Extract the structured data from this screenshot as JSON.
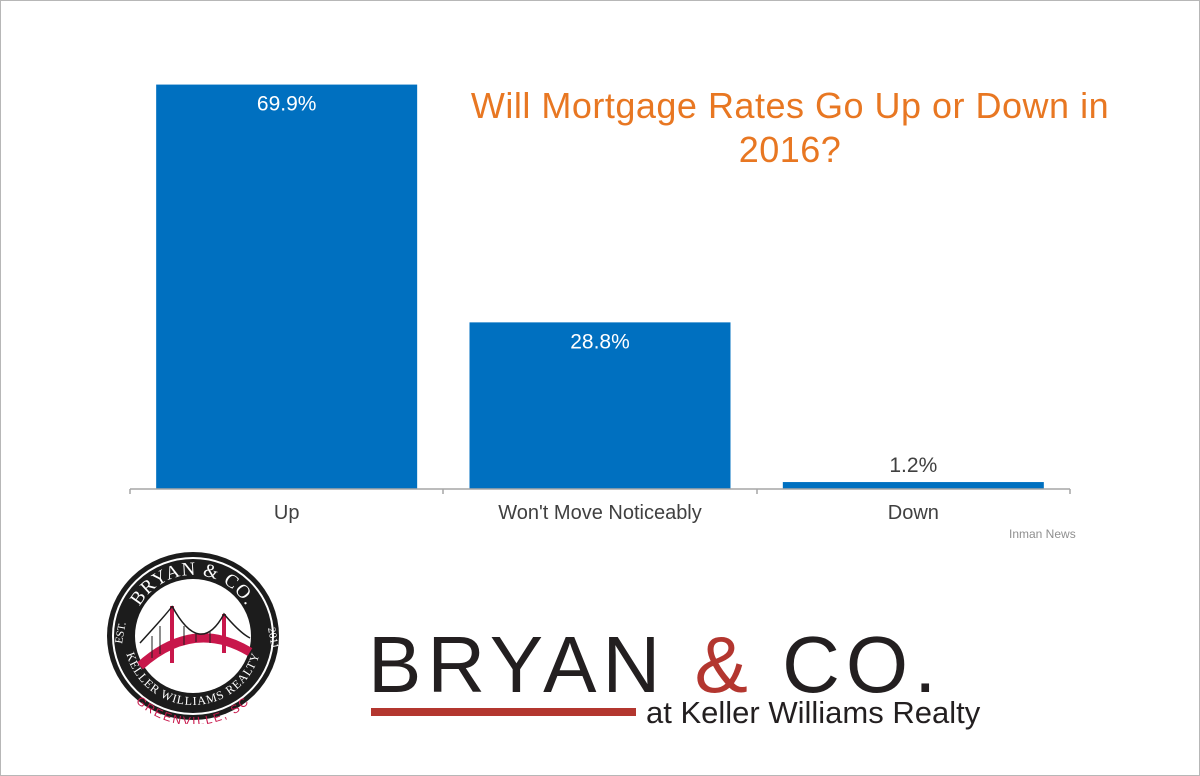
{
  "chart_data": {
    "type": "bar",
    "title": "Will Mortgage Rates Go Up or Down in 2016?",
    "categories": [
      "Up",
      "Won't Move Noticeably",
      "Down"
    ],
    "values": [
      69.9,
      28.8,
      1.2
    ],
    "value_labels": [
      "69.9%",
      "28.8%",
      "1.2%"
    ],
    "ylim": [
      0,
      70
    ],
    "grid": false,
    "bar_color": "#0070c0",
    "title_color": "#e87722",
    "source": "Inman News"
  },
  "brand": {
    "name_part1": "BRYAN",
    "name_amp": "&",
    "name_part2": "CO.",
    "subtitle": "at Keller Williams Realty",
    "accent_color": "#b3362f"
  },
  "logo": {
    "top_text": "BRYAN & CO.",
    "est_label": "EST.",
    "est_year": "2011",
    "ring_text": "KELLER WILLIAMS REALTY",
    "bottom_text": "GREENVILLE, SC",
    "icon": "bridge-icon"
  }
}
